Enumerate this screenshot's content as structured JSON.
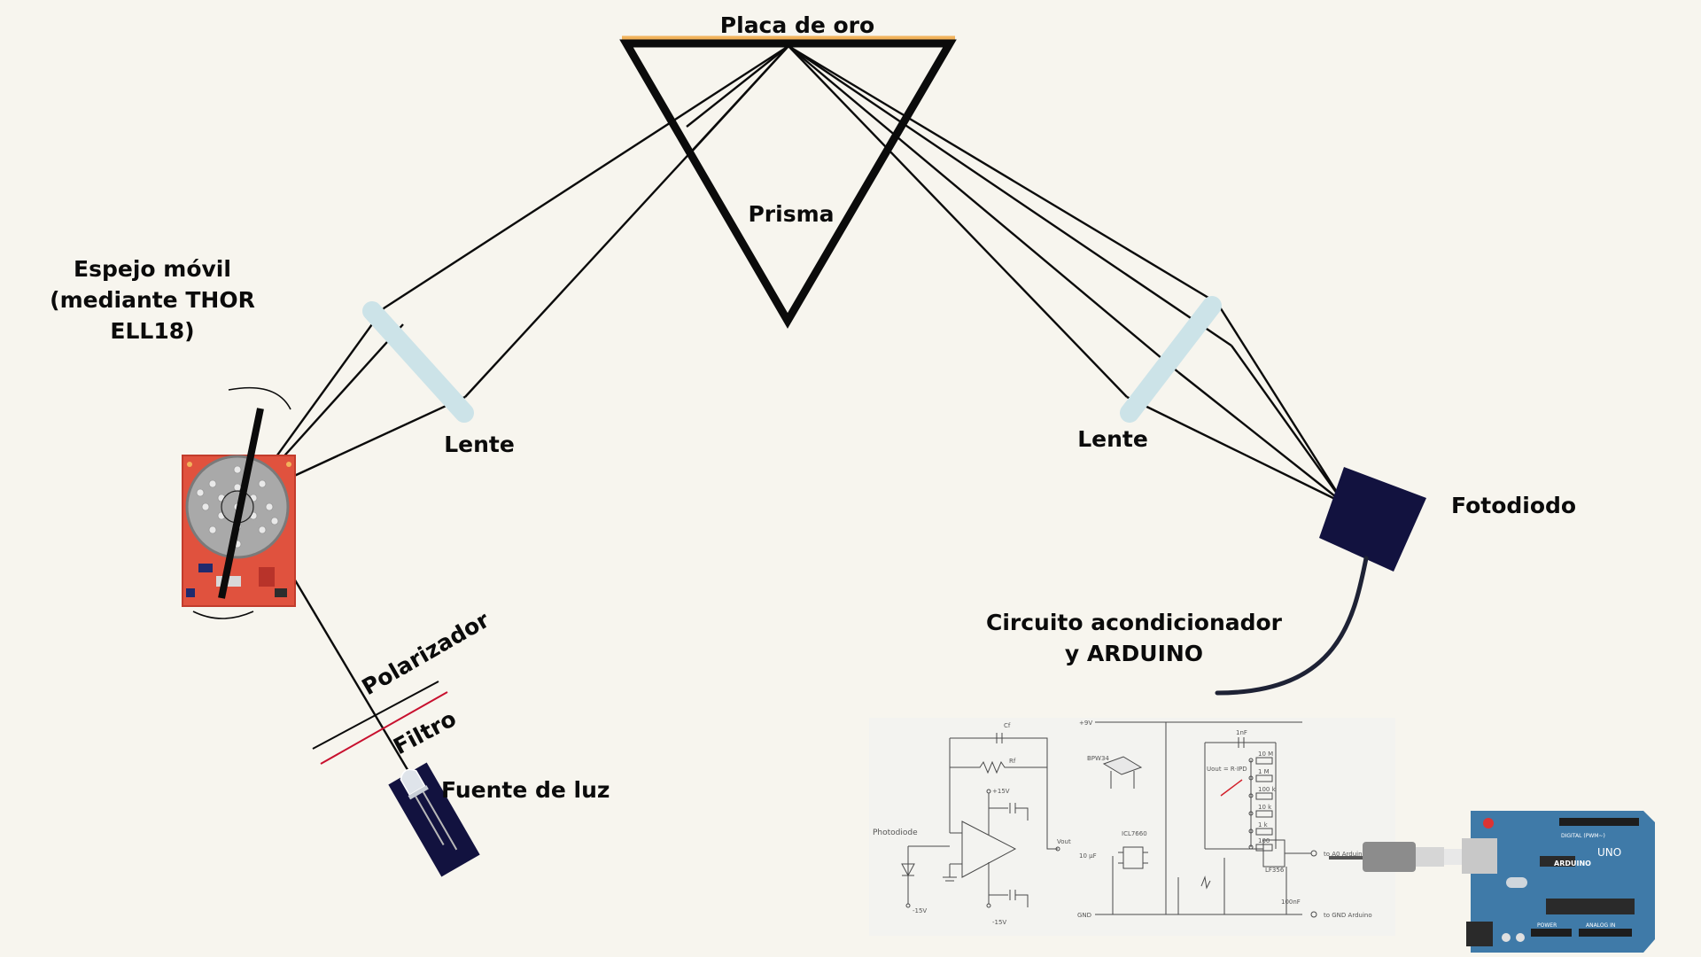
{
  "labels": {
    "gold_plate": "Placa de oro",
    "prism": "Prisma",
    "mirror_line1": "Espejo móvil",
    "mirror_line2": "(mediante THOR",
    "mirror_line3": "ELL18)",
    "lens_left": "Lente",
    "lens_right": "Lente",
    "photodiode": "Fotodiodo",
    "circuit_line1": "Circuito acondicionador",
    "circuit_line2": "y ARDUINO",
    "polarizer": "Polarizador",
    "filter": "Filtro",
    "light_source": "Fuente de luz"
  },
  "schematic": {
    "photodiode": "Photodiode",
    "cf": "Cf",
    "rf": "Rf",
    "plus15": "+15V",
    "minus15a": "-15V",
    "minus15b": "-15V",
    "vout": "Vout",
    "plus9": "+9V",
    "bpw34": "BPW34",
    "icl7660": "ICL7660",
    "lf356": "LF356",
    "r10m": "10 M",
    "r1m": "1 M",
    "r100k": "100 k",
    "r10k": "10 k",
    "r1k": "1 k",
    "r100": "100",
    "c1nf": "1nF",
    "c10uf": "10 µF",
    "c100nf": "100nF",
    "gnd": "GND",
    "to_gnd": "to GND Arduino",
    "to_a0": "to A0 Arduino",
    "uout": "Uout = R·IPD"
  },
  "arduino": {
    "brand": "ARDUINO",
    "model": "UNO",
    "digital": "DIGITAL (PWM~)",
    "power": "POWER",
    "analog": "ANALOG IN"
  },
  "colors": {
    "background": "#f7f5ee",
    "gold": "#f2b35c",
    "lens": "#cce3e8",
    "dark_blue": "#12123f",
    "filter_red": "#c8102e",
    "arduino_blue": "#3f7aa8"
  }
}
